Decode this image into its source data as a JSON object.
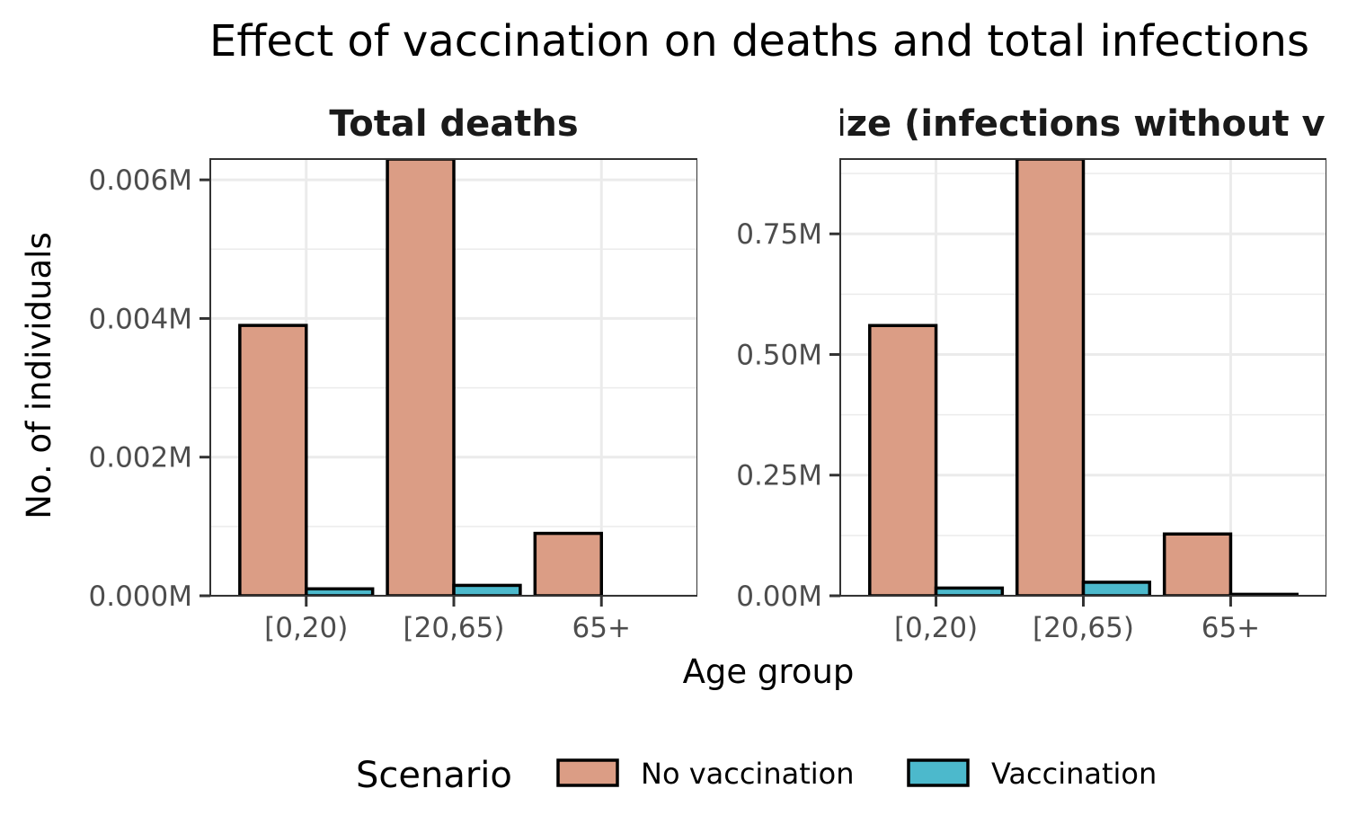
{
  "title": "Effect of vaccination on deaths and total infections",
  "xlabel": "Age group",
  "ylabel": "No. of individuals",
  "legend": {
    "title": "Scenario",
    "placement": "bottom",
    "entries": [
      {
        "label": "No vaccination",
        "color": "#DB9D85"
      },
      {
        "label": "Vaccination",
        "color": "#4CB9CC"
      }
    ]
  },
  "chart_data": [
    {
      "type": "bar",
      "title": "Total deaths",
      "categories": [
        "[0,20)",
        "[20,65)",
        "65+"
      ],
      "series": [
        {
          "name": "No vaccination",
          "values": [
            0.0039,
            0.0063,
            0.0009
          ]
        },
        {
          "name": "Vaccination",
          "values": [
            0.0001,
            0.00015,
            0.0
          ]
        }
      ],
      "ylim": [
        0,
        0.0063
      ],
      "yticks": [
        0,
        0.002,
        0.004,
        0.006
      ],
      "ytick_labels": [
        "0.000M",
        "0.002M",
        "0.004M",
        "0.006M"
      ],
      "grid": true
    },
    {
      "type": "bar",
      "title": "Epidemic size (infections without vaccination)",
      "categories": [
        "[0,20)",
        "[20,65)",
        "65+"
      ],
      "series": [
        {
          "name": "No vaccination",
          "values": [
            0.56,
            0.905,
            0.128
          ]
        },
        {
          "name": "Vaccination",
          "values": [
            0.016,
            0.028,
            0.003
          ]
        }
      ],
      "ylim": [
        0,
        0.905
      ],
      "yticks": [
        0,
        0.25,
        0.5,
        0.75
      ],
      "ytick_labels": [
        "0.00M",
        "0.25M",
        "0.50M",
        "0.75M"
      ],
      "grid": true
    }
  ]
}
